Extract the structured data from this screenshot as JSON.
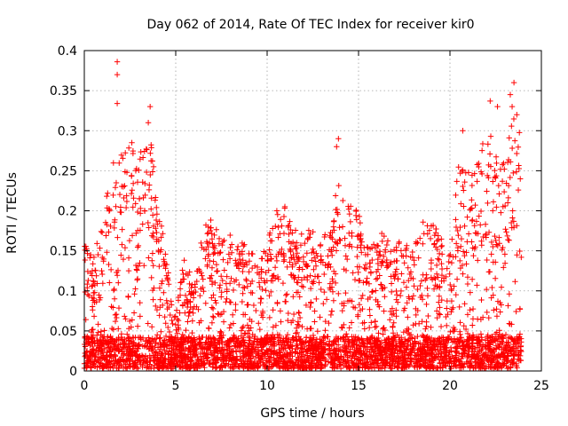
{
  "chart_data": {
    "type": "scatter",
    "title": "Day 062 of 2014, Rate Of TEC Index for receiver kir0",
    "xlabel": "GPS time / hours",
    "ylabel": "ROTI / TECUs",
    "xlim": [
      0,
      25
    ],
    "ylim": [
      0,
      0.4
    ],
    "x_ticks": [
      0,
      5,
      10,
      15,
      20,
      25
    ],
    "y_ticks": [
      0,
      0.05,
      0.1,
      0.15,
      0.2,
      0.25,
      0.3,
      0.35,
      0.4
    ],
    "x_tick_labels": [
      "0",
      "5",
      "10",
      "15",
      "20",
      "25"
    ],
    "y_tick_labels": [
      "0",
      "0.05",
      "0.1",
      "0.15",
      "0.2",
      "0.25",
      "0.3",
      "0.35",
      "0.4"
    ],
    "grid": true,
    "marker": "+",
    "color": "#ff0000",
    "x_range_of_points": [
      0,
      23.9
    ],
    "envelope": {
      "description": "approximate upper envelope of ROTI values per hour",
      "hour": [
        0,
        0.5,
        1,
        1.5,
        2,
        2.5,
        3,
        3.5,
        4,
        4.5,
        5,
        5.5,
        6,
        6.5,
        7,
        7.5,
        8,
        8.5,
        9,
        9.5,
        10,
        10.5,
        11,
        11.5,
        12,
        12.5,
        13,
        13.5,
        14,
        14.5,
        15,
        15.5,
        16,
        16.5,
        17,
        17.5,
        18,
        18.5,
        19,
        19.5,
        20,
        20.5,
        21,
        21.5,
        22,
        22.5,
        23,
        23.5,
        23.9
      ],
      "roti_max": [
        0.16,
        0.14,
        0.19,
        0.26,
        0.27,
        0.28,
        0.27,
        0.31,
        0.22,
        0.14,
        0.07,
        0.15,
        0.1,
        0.18,
        0.19,
        0.16,
        0.17,
        0.17,
        0.16,
        0.13,
        0.16,
        0.2,
        0.21,
        0.18,
        0.17,
        0.19,
        0.17,
        0.18,
        0.26,
        0.21,
        0.2,
        0.17,
        0.16,
        0.19,
        0.17,
        0.16,
        0.16,
        0.2,
        0.19,
        0.17,
        0.15,
        0.27,
        0.25,
        0.26,
        0.3,
        0.29,
        0.26,
        0.33,
        0.32
      ]
    },
    "peaks": [
      {
        "x": 1.8,
        "y": 0.386
      },
      {
        "x": 1.8,
        "y": 0.37
      },
      {
        "x": 1.8,
        "y": 0.334
      },
      {
        "x": 2.6,
        "y": 0.285
      },
      {
        "x": 3.6,
        "y": 0.33
      },
      {
        "x": 3.5,
        "y": 0.31
      },
      {
        "x": 13.9,
        "y": 0.29
      },
      {
        "x": 13.8,
        "y": 0.28
      },
      {
        "x": 20.7,
        "y": 0.3
      },
      {
        "x": 22.2,
        "y": 0.337
      },
      {
        "x": 22.6,
        "y": 0.33
      },
      {
        "x": 23.3,
        "y": 0.345
      },
      {
        "x": 23.5,
        "y": 0.36
      },
      {
        "x": 23.4,
        "y": 0.33
      }
    ]
  }
}
